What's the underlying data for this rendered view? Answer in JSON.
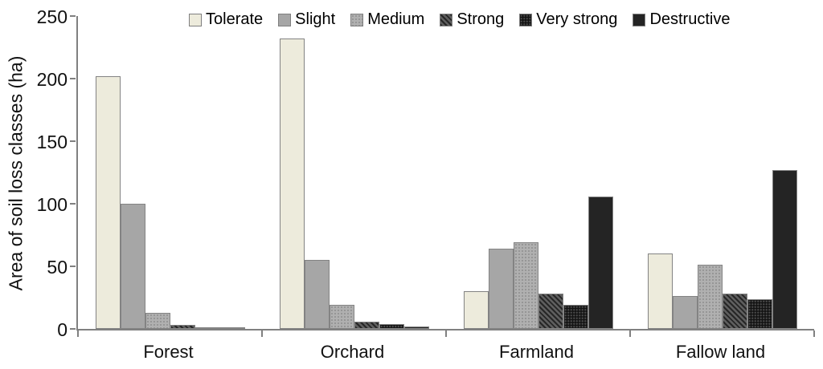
{
  "colors": {
    "axis": "#808080",
    "text": "#111111",
    "bar_border": "#838383",
    "background": "#ffffff"
  },
  "chart_data": {
    "type": "bar",
    "title": "",
    "xlabel": "",
    "ylabel": "Area of soil loss classes (ha)",
    "ylim": [
      0,
      250
    ],
    "yticks": [
      0,
      50,
      100,
      150,
      200,
      250
    ],
    "grid": false,
    "legend_position": "top",
    "categories": [
      "Forest",
      "Orchard",
      "Farmland",
      "Fallow land"
    ],
    "series": [
      {
        "name": "Tolerate",
        "pattern": "solid",
        "fill": "#edebdc",
        "values": [
          202,
          232,
          30,
          60
        ]
      },
      {
        "name": "Slight",
        "pattern": "solid",
        "fill": "#a6a6a6",
        "values": [
          100,
          55,
          64,
          26
        ]
      },
      {
        "name": "Medium",
        "pattern": "dots-light",
        "fill": "#b0b0b0",
        "values": [
          13,
          19,
          69,
          51
        ]
      },
      {
        "name": "Strong",
        "pattern": "diagonal",
        "fill": "#5f5f5f",
        "values": [
          3,
          6,
          28,
          28
        ]
      },
      {
        "name": "Very strong",
        "pattern": "dots-dark",
        "fill": "#141414",
        "values": [
          1.5,
          4,
          19,
          24
        ]
      },
      {
        "name": "Destructive",
        "pattern": "solid",
        "fill": "#242424",
        "values": [
          0.5,
          2,
          106,
          127
        ]
      }
    ]
  }
}
